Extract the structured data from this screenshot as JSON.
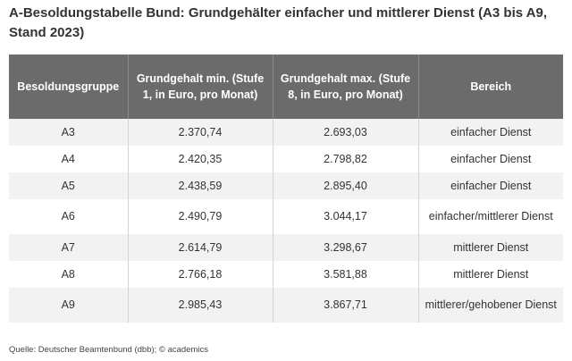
{
  "title": "A-Besoldungstabelle Bund: Grundgehälter einfacher und mittlerer Dienst (A3 bis A9, Stand 2023)",
  "table": {
    "headers": [
      "Besoldungsgruppe",
      "Grundgehalt min. (Stufe 1, in Euro, pro Monat)",
      "Grundgehalt max. (Stufe 8, in Euro, pro Monat)",
      "Bereich"
    ],
    "rows": [
      {
        "gruppe": "A3",
        "min": "2.370,74",
        "max": "2.693,03",
        "bereich": "einfacher Dienst"
      },
      {
        "gruppe": "A4",
        "min": "2.420,35",
        "max": "2.798,82",
        "bereich": "einfacher Dienst"
      },
      {
        "gruppe": "A5",
        "min": "2.438,59",
        "max": "2.895,40",
        "bereich": "einfacher Dienst"
      },
      {
        "gruppe": "A6",
        "min": "2.490,79",
        "max": "3.044,17",
        "bereich": "einfacher/mittlerer Dienst"
      },
      {
        "gruppe": "A7",
        "min": "2.614,79",
        "max": "3.298,67",
        "bereich": "mittlerer Dienst"
      },
      {
        "gruppe": "A8",
        "min": "2.766,18",
        "max": "3.581,88",
        "bereich": "mittlerer Dienst"
      },
      {
        "gruppe": "A9",
        "min": "2.985,43",
        "max": "3.867,71",
        "bereich": "mittlerer/gehobener Dienst"
      }
    ]
  },
  "source": "Quelle: Deutscher Beamtenbund (dbb); © academics"
}
